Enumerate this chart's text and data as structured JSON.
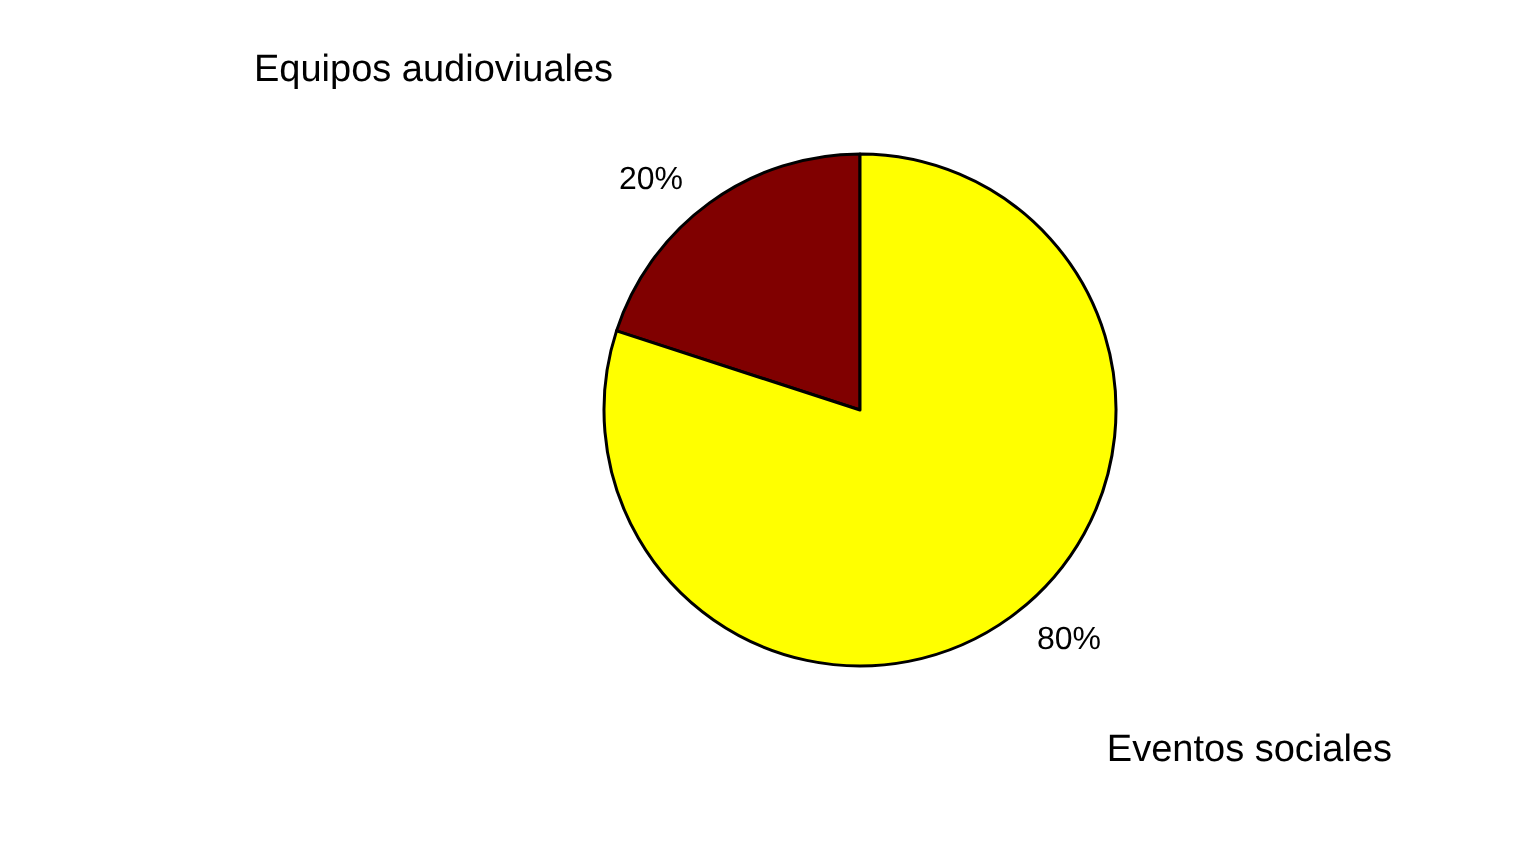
{
  "chart_data": {
    "type": "pie",
    "categories": [
      "Equipos audioviuales",
      "Eventos sociales"
    ],
    "values": [
      20,
      80
    ],
    "colors": [
      "#800000",
      "#ffff00"
    ],
    "value_labels": [
      "20%",
      "80%"
    ]
  }
}
